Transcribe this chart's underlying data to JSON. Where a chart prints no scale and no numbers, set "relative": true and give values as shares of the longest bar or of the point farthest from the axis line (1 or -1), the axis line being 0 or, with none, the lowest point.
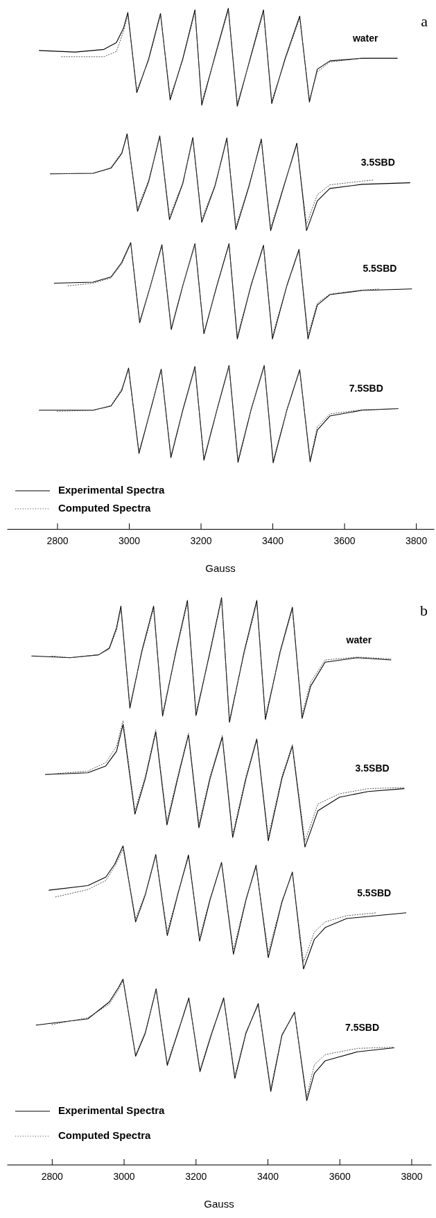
{
  "chart_data": [
    {
      "type": "line",
      "title": "a",
      "xlabel": "Gauss",
      "relative": true,
      "xlim": [
        2660,
        3850
      ],
      "xticks": [
        2800,
        3000,
        3200,
        3400,
        3600,
        3800
      ],
      "legend": "bottom left",
      "annotations": [
        "water",
        "3.5SBD",
        "5.5SBD",
        "7.5SBD"
      ],
      "series": [
        {
          "name": "Experimental Spectra",
          "color": "#000000",
          "line_style": "solid",
          "x": [
            2750,
            2850,
            2930,
            2965,
            2985,
            2997,
            3022,
            3055,
            3088,
            3115,
            3150,
            3184,
            3203,
            3240,
            3277,
            3302,
            3340,
            3375,
            3398,
            3435,
            3476,
            3503,
            3525,
            3560,
            3650,
            3748
          ],
          "values": [
            0.919,
            0.916,
            0.921,
            0.934,
            0.962,
            0.992,
            0.838,
            0.903,
            0.99,
            0.824,
            0.903,
            0.997,
            0.814,
            0.909,
            1.0,
            0.812,
            0.909,
            0.997,
            0.817,
            0.903,
            0.985,
            0.82,
            0.883,
            0.899,
            0.904,
            0.904
          ]
        },
        {
          "name": "Computed Spectra",
          "color": "#555555",
          "line_style": "dotted",
          "x": [
            2812,
            2930,
            2965,
            2985,
            2997,
            3022,
            3055,
            3088,
            3115,
            3150,
            3184,
            3203,
            3240,
            3277,
            3302,
            3340,
            3375,
            3398,
            3435,
            3476,
            3503,
            3525,
            3560,
            3650,
            3748
          ],
          "values": [
            0.907,
            0.907,
            0.917,
            0.956,
            0.987,
            0.843,
            0.9,
            0.987,
            0.83,
            0.9,
            0.993,
            0.821,
            0.906,
            0.996,
            0.818,
            0.906,
            0.993,
            0.823,
            0.9,
            0.981,
            0.825,
            0.878,
            0.897,
            0.904,
            0.904
          ]
        },
        {
          "color": "#000000",
          "line_style": "solid",
          "x": [
            2781,
            2900,
            2950,
            2980,
            2995,
            3024,
            3055,
            3086,
            3113,
            3150,
            3178,
            3203,
            3240,
            3273,
            3298,
            3335,
            3369,
            3395,
            3430,
            3468,
            3495,
            3525,
            3560,
            3650,
            3783
          ],
          "values": [
            0.682,
            0.683,
            0.693,
            0.721,
            0.759,
            0.61,
            0.667,
            0.755,
            0.594,
            0.663,
            0.752,
            0.589,
            0.659,
            0.751,
            0.575,
            0.659,
            0.749,
            0.573,
            0.654,
            0.741,
            0.573,
            0.63,
            0.654,
            0.662,
            0.665
          ]
        },
        {
          "color": "#555555",
          "line_style": "dotted",
          "x": [
            2781,
            2900,
            2950,
            2980,
            2995,
            3024,
            3055,
            3086,
            3113,
            3150,
            3178,
            3203,
            3240,
            3273,
            3298,
            3335,
            3369,
            3395,
            3430,
            3468,
            3495,
            3525,
            3560,
            3650,
            3680
          ],
          "values": [
            0.682,
            0.683,
            0.694,
            0.724,
            0.755,
            0.616,
            0.67,
            0.752,
            0.6,
            0.665,
            0.748,
            0.595,
            0.661,
            0.748,
            0.581,
            0.661,
            0.746,
            0.579,
            0.656,
            0.738,
            0.585,
            0.642,
            0.661,
            0.668,
            0.67
          ]
        },
        {
          "color": "#000000",
          "line_style": "solid",
          "x": [
            2792,
            2900,
            2950,
            2980,
            3005,
            3030,
            3060,
            3092,
            3118,
            3150,
            3184,
            3209,
            3245,
            3279,
            3302,
            3340,
            3375,
            3400,
            3440,
            3474,
            3499,
            3525,
            3560,
            3650,
            3788
          ],
          "values": [
            0.472,
            0.474,
            0.484,
            0.512,
            0.55,
            0.396,
            0.467,
            0.546,
            0.383,
            0.467,
            0.548,
            0.375,
            0.467,
            0.548,
            0.365,
            0.467,
            0.545,
            0.365,
            0.467,
            0.537,
            0.365,
            0.43,
            0.45,
            0.458,
            0.461
          ]
        },
        {
          "color": "#555555",
          "line_style": "dotted",
          "x": [
            2830,
            2900,
            2950,
            2980,
            3005,
            3030,
            3060,
            3092,
            3118,
            3150,
            3184,
            3209,
            3245,
            3279,
            3302,
            3340,
            3375,
            3400,
            3440,
            3474,
            3499,
            3525,
            3560,
            3650,
            3700
          ],
          "values": [
            0.467,
            0.472,
            0.482,
            0.509,
            0.548,
            0.399,
            0.467,
            0.543,
            0.387,
            0.467,
            0.546,
            0.378,
            0.467,
            0.545,
            0.371,
            0.467,
            0.542,
            0.371,
            0.467,
            0.535,
            0.373,
            0.434,
            0.451,
            0.459,
            0.461
          ]
        },
        {
          "color": "#000000",
          "line_style": "solid",
          "x": [
            2750,
            2900,
            2950,
            2980,
            2999,
            3028,
            3060,
            3090,
            3117,
            3150,
            3184,
            3209,
            3245,
            3279,
            3304,
            3340,
            3377,
            3402,
            3440,
            3476,
            3505,
            3525,
            3560,
            3650,
            3750
          ],
          "values": [
            0.228,
            0.228,
            0.236,
            0.266,
            0.309,
            0.145,
            0.228,
            0.307,
            0.137,
            0.228,
            0.312,
            0.132,
            0.228,
            0.314,
            0.128,
            0.228,
            0.314,
            0.127,
            0.228,
            0.306,
            0.129,
            0.19,
            0.217,
            0.228,
            0.231
          ]
        },
        {
          "color": "#555555",
          "line_style": "dotted",
          "x": [
            2800,
            2900,
            2950,
            2980,
            2999,
            3028,
            3060,
            3090,
            3117,
            3150,
            3184,
            3209,
            3245,
            3279,
            3304,
            3340,
            3377,
            3402,
            3440,
            3476,
            3505,
            3525,
            3560,
            3650,
            3750
          ],
          "values": [
            0.226,
            0.228,
            0.237,
            0.269,
            0.306,
            0.149,
            0.228,
            0.305,
            0.141,
            0.228,
            0.309,
            0.136,
            0.228,
            0.312,
            0.133,
            0.228,
            0.312,
            0.132,
            0.228,
            0.304,
            0.134,
            0.196,
            0.221,
            0.229,
            0.231
          ]
        }
      ]
    },
    {
      "type": "line",
      "title": "b",
      "xlabel": "Gauss",
      "relative": true,
      "xlim": [
        2675,
        3855
      ],
      "xticks": [
        2800,
        3000,
        3200,
        3400,
        3600,
        3800
      ],
      "legend": "bottom left",
      "annotations": [
        "water",
        "3.5SBD",
        "5.5SBD",
        "7.5SBD"
      ],
      "series": [
        {
          "name": "Experimental Spectra",
          "color": "#000000",
          "line_style": "solid",
          "x": [
            2744,
            2850,
            2930,
            2960,
            2980,
            2992,
            3017,
            3050,
            3083,
            3108,
            3145,
            3177,
            3201,
            3240,
            3272,
            3294,
            3335,
            3370,
            3394,
            3435,
            3469,
            3496,
            3520,
            3560,
            3650,
            3743
          ],
          "values": [
            0.897,
            0.894,
            0.899,
            0.911,
            0.947,
            0.985,
            0.805,
            0.905,
            0.985,
            0.791,
            0.905,
            0.995,
            0.792,
            0.905,
            1.0,
            0.78,
            0.905,
            0.995,
            0.785,
            0.905,
            0.983,
            0.787,
            0.844,
            0.886,
            0.894,
            0.89
          ]
        },
        {
          "name": "Computed Spectra",
          "color": "#555555",
          "line_style": "dotted",
          "x": [
            2800,
            2850,
            2930,
            2960,
            2980,
            2992,
            3017,
            3050,
            3083,
            3108,
            3145,
            3177,
            3201,
            3240,
            3272,
            3294,
            3335,
            3370,
            3394,
            3435,
            3469,
            3496,
            3520,
            3560,
            3650,
            3743
          ],
          "values": [
            0.897,
            0.894,
            0.899,
            0.909,
            0.943,
            0.98,
            0.81,
            0.902,
            0.98,
            0.796,
            0.902,
            0.99,
            0.798,
            0.902,
            0.996,
            0.785,
            0.902,
            0.99,
            0.791,
            0.902,
            0.979,
            0.794,
            0.851,
            0.89,
            0.895,
            0.892
          ]
        },
        {
          "color": "#000000",
          "line_style": "solid",
          "x": [
            2782,
            2900,
            2950,
            2980,
            2998,
            3031,
            3060,
            3089,
            3120,
            3150,
            3180,
            3209,
            3240,
            3274,
            3303,
            3340,
            3370,
            3402,
            3440,
            3469,
            3504,
            3540,
            3600,
            3680,
            3780
          ],
          "values": [
            0.688,
            0.691,
            0.703,
            0.729,
            0.776,
            0.618,
            0.681,
            0.763,
            0.599,
            0.681,
            0.758,
            0.594,
            0.681,
            0.754,
            0.577,
            0.681,
            0.75,
            0.571,
            0.681,
            0.738,
            0.56,
            0.624,
            0.648,
            0.658,
            0.663
          ]
        },
        {
          "color": "#555555",
          "line_style": "dotted",
          "x": [
            2782,
            2900,
            2950,
            2980,
            2998,
            3031,
            3060,
            3089,
            3120,
            3150,
            3180,
            3209,
            3240,
            3274,
            3303,
            3340,
            3370,
            3402,
            3440,
            3469,
            3504,
            3540,
            3600,
            3680,
            3780
          ],
          "values": [
            0.688,
            0.694,
            0.709,
            0.738,
            0.783,
            0.625,
            0.685,
            0.767,
            0.606,
            0.685,
            0.761,
            0.601,
            0.685,
            0.757,
            0.583,
            0.685,
            0.752,
            0.578,
            0.685,
            0.741,
            0.57,
            0.636,
            0.654,
            0.663,
            0.665
          ]
        },
        {
          "color": "#000000",
          "line_style": "solid",
          "x": [
            2792,
            2900,
            2950,
            2975,
            2998,
            3033,
            3060,
            3089,
            3121,
            3150,
            3180,
            3211,
            3240,
            3272,
            3305,
            3340,
            3368,
            3402,
            3440,
            3469,
            3500,
            3530,
            3560,
            3620,
            3785
          ],
          "values": [
            0.484,
            0.492,
            0.507,
            0.53,
            0.562,
            0.428,
            0.476,
            0.547,
            0.404,
            0.476,
            0.546,
            0.394,
            0.467,
            0.533,
            0.371,
            0.467,
            0.528,
            0.365,
            0.463,
            0.516,
            0.345,
            0.397,
            0.418,
            0.434,
            0.444
          ]
        },
        {
          "color": "#555555",
          "line_style": "dotted",
          "x": [
            2810,
            2900,
            2950,
            2975,
            2998,
            3033,
            3060,
            3089,
            3121,
            3150,
            3180,
            3211,
            3240,
            3272,
            3305,
            3340,
            3368,
            3402,
            3440,
            3469,
            3500,
            3530,
            3560,
            3620,
            3700
          ],
          "values": [
            0.472,
            0.485,
            0.501,
            0.526,
            0.556,
            0.434,
            0.478,
            0.544,
            0.411,
            0.478,
            0.542,
            0.401,
            0.469,
            0.531,
            0.379,
            0.469,
            0.525,
            0.374,
            0.465,
            0.514,
            0.357,
            0.41,
            0.428,
            0.439,
            0.444
          ]
        },
        {
          "color": "#000000",
          "line_style": "solid",
          "x": [
            2756,
            2900,
            2960,
            2985,
            2998,
            3033,
            3060,
            3090,
            3121,
            3150,
            3181,
            3212,
            3245,
            3278,
            3309,
            3340,
            3374,
            3409,
            3440,
            3475,
            3509,
            3530,
            3560,
            3650,
            3752
          ],
          "values": [
            0.246,
            0.257,
            0.287,
            0.312,
            0.327,
            0.191,
            0.232,
            0.31,
            0.175,
            0.232,
            0.294,
            0.164,
            0.232,
            0.294,
            0.152,
            0.232,
            0.284,
            0.129,
            0.228,
            0.269,
            0.113,
            0.161,
            0.183,
            0.199,
            0.206
          ]
        },
        {
          "color": "#555555",
          "line_style": "dotted",
          "x": [
            2800,
            2900,
            2960,
            2985,
            2998,
            3033,
            3060,
            3090,
            3121,
            3150,
            3181,
            3212,
            3245,
            3278,
            3309,
            3340,
            3374,
            3409,
            3440,
            3475,
            3509,
            3530,
            3560,
            3650,
            3752
          ],
          "values": [
            0.247,
            0.259,
            0.283,
            0.308,
            0.324,
            0.194,
            0.234,
            0.308,
            0.179,
            0.234,
            0.291,
            0.168,
            0.234,
            0.291,
            0.157,
            0.234,
            0.281,
            0.135,
            0.23,
            0.267,
            0.12,
            0.176,
            0.194,
            0.205,
            0.207
          ]
        }
      ]
    }
  ]
}
